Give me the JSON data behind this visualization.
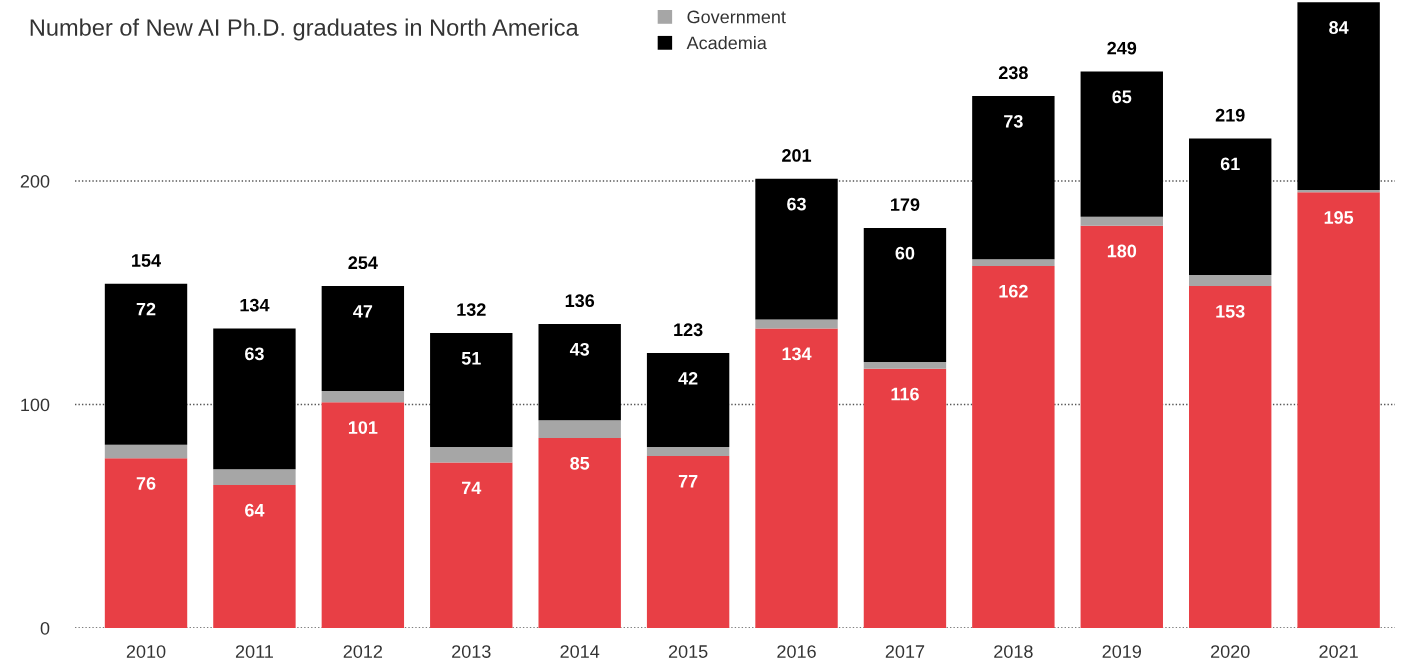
{
  "chart_data": {
    "type": "bar",
    "title": "Number of New AI Ph.D. graduates in North America",
    "categories": [
      "2010",
      "2011",
      "2012",
      "2013",
      "2014",
      "2015",
      "2016",
      "2017",
      "2018",
      "2019",
      "2020",
      "2021"
    ],
    "stacked": true,
    "series": [
      {
        "color": "#e83f45",
        "values": [
          76,
          64,
          101,
          74,
          85,
          77,
          134,
          116,
          162,
          180,
          153,
          195
        ],
        "value_labels": [
          "76",
          "64",
          "101",
          "74",
          "85",
          "77",
          "134",
          "116",
          "162",
          "180",
          "153",
          "195"
        ]
      },
      {
        "name": "Government",
        "color": "#a6a6a6",
        "values": [
          6,
          7,
          5,
          7,
          8,
          4,
          4,
          3,
          3,
          4,
          5,
          1
        ]
      },
      {
        "name": "Academia",
        "color": "#000000",
        "values": [
          72,
          63,
          47,
          51,
          43,
          42,
          63,
          60,
          73,
          65,
          61,
          84
        ],
        "value_labels": [
          "72",
          "63",
          "47",
          "51",
          "43",
          "42",
          "63",
          "60",
          "73",
          "65",
          "61",
          "84"
        ]
      }
    ],
    "annotations": [
      {
        "text": "154",
        "x": "2010",
        "y": 154
      },
      {
        "text": "134",
        "x": "2011",
        "y": 134
      },
      {
        "text": "254",
        "x": "2012",
        "y": 153
      },
      {
        "text": "132",
        "x": "2013",
        "y": 132
      },
      {
        "text": "136",
        "x": "2014",
        "y": 136
      },
      {
        "text": "123",
        "x": "2015",
        "y": 123
      },
      {
        "text": "201",
        "x": "2016",
        "y": 201
      },
      {
        "text": "179",
        "x": "2017",
        "y": 179
      },
      {
        "text": "238",
        "x": "2018",
        "y": 238
      },
      {
        "text": "249",
        "x": "2019",
        "y": 249
      },
      {
        "text": "219",
        "x": "2020",
        "y": 219
      }
    ],
    "ylim": [
      0,
      281
    ],
    "yticks": [
      0,
      100,
      200
    ],
    "grid": "y",
    "legend": "top"
  }
}
